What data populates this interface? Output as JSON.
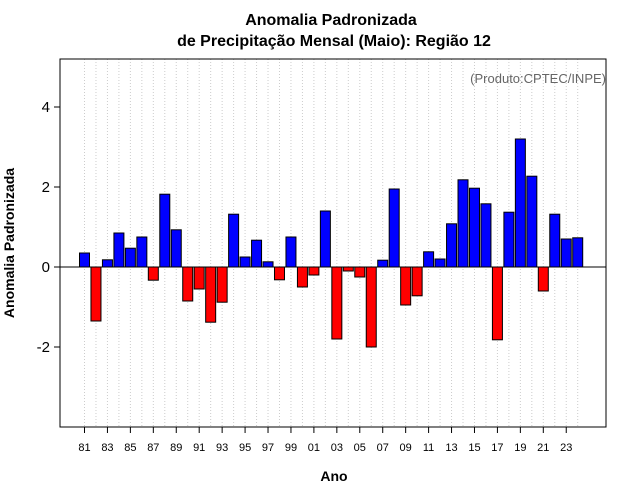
{
  "chart_data": {
    "type": "bar",
    "title": "Anomalia Padronizada",
    "subtitle": "de Precipitação Mensal (Maio): Região 12",
    "xlabel": "Ano",
    "ylabel": "Anomalia Padronizada",
    "annotation": "(Produto:CPTEC/INPE)",
    "ylim": [
      -4,
      5.2
    ],
    "yticks": [
      -2,
      0,
      2,
      4
    ],
    "x_tick_labels": [
      "81",
      "83",
      "85",
      "87",
      "89",
      "91",
      "93",
      "95",
      "97",
      "99",
      "01",
      "03",
      "05",
      "07",
      "09",
      "11",
      "13",
      "15",
      "17",
      "19",
      "21",
      "23"
    ],
    "categories": [
      "1981",
      "1982",
      "1983",
      "1984",
      "1985",
      "1986",
      "1987",
      "1988",
      "1989",
      "1990",
      "1991",
      "1992",
      "1993",
      "1994",
      "1995",
      "1996",
      "1997",
      "1998",
      "1999",
      "2000",
      "2001",
      "2002",
      "2003",
      "2004",
      "2005",
      "2006",
      "2007",
      "2008",
      "2009",
      "2010",
      "2011",
      "2012",
      "2013",
      "2014",
      "2015",
      "2016",
      "2017",
      "2018",
      "2019",
      "2020",
      "2021",
      "2022",
      "2023",
      "2024"
    ],
    "values": [
      0.35,
      -1.35,
      0.18,
      0.85,
      0.47,
      0.75,
      -0.33,
      1.82,
      0.93,
      -0.85,
      -0.55,
      -1.38,
      -0.88,
      1.32,
      0.25,
      0.67,
      0.13,
      -0.32,
      0.75,
      -0.5,
      -0.2,
      1.4,
      -1.8,
      -0.1,
      -0.25,
      -2.0,
      0.17,
      1.95,
      -0.95,
      -0.72,
      0.38,
      0.2,
      1.08,
      2.18,
      1.97,
      1.58,
      -1.82,
      1.37,
      3.2,
      2.27,
      -0.6,
      1.32,
      0.7,
      0.73
    ],
    "colors": {
      "positive": "#0000ff",
      "negative": "#ff0000",
      "grid": "#cccccc",
      "annotation": "#666666"
    }
  }
}
